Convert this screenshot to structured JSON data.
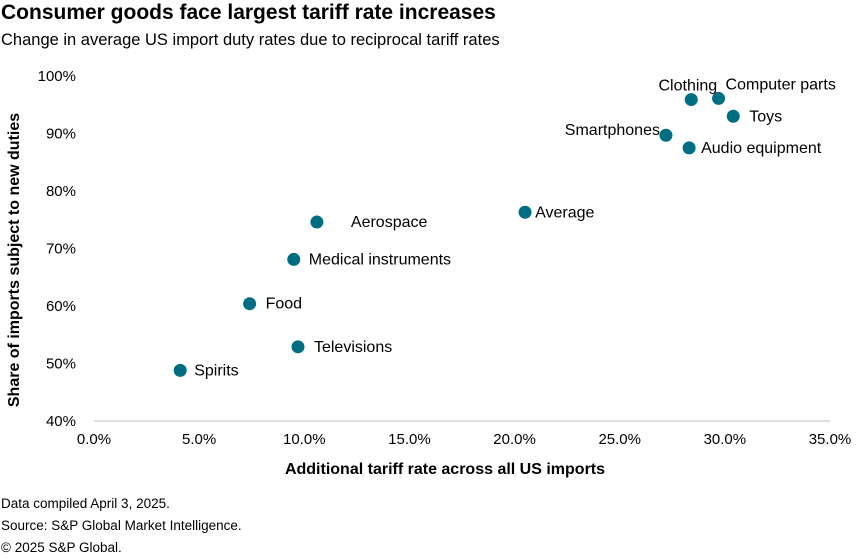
{
  "header": {
    "title": "Consumer goods face largest tariff rate increases",
    "subtitle": "Change in average US import duty rates due to reciprocal tariff rates"
  },
  "footer": {
    "note": "Data compiled April 3, 2025.",
    "source": "Source: S&P Global Market Intelligence.",
    "copyright": "© 2025 S&P Global."
  },
  "colors": {
    "marker": "#006e82",
    "axis": "#bfbfbf"
  },
  "chart_data": {
    "type": "scatter",
    "title": "Consumer goods face largest tariff rate increases",
    "subtitle": "Change in average US import duty rates due to reciprocal tariff rates",
    "xlabel": "Additional tariff rate across all US imports",
    "ylabel": "Share of imports subject to new duties",
    "xlim": [
      0,
      35
    ],
    "ylim": [
      40,
      100
    ],
    "x_ticks": [
      "0.0%",
      "5.0%",
      "10.0%",
      "15.0%",
      "20.0%",
      "25.0%",
      "30.0%",
      "35.0%"
    ],
    "y_ticks": [
      "40%",
      "50%",
      "60%",
      "70%",
      "80%",
      "90%",
      "100%"
    ],
    "grid": false,
    "legend": "none",
    "points": [
      {
        "label": "Spirits",
        "x": 4.1,
        "y": 48.8
      },
      {
        "label": "Food",
        "x": 7.4,
        "y": 60.4
      },
      {
        "label": "Televisions",
        "x": 9.7,
        "y": 52.9
      },
      {
        "label": "Medical instruments",
        "x": 9.5,
        "y": 68.1
      },
      {
        "label": "Aerospace",
        "x": 10.6,
        "y": 74.6
      },
      {
        "label": "Average",
        "x": 20.5,
        "y": 76.3
      },
      {
        "label": "Smartphones",
        "x": 27.2,
        "y": 89.7
      },
      {
        "label": "Audio equipment",
        "x": 28.3,
        "y": 87.5
      },
      {
        "label": "Clothing",
        "x": 28.4,
        "y": 95.9
      },
      {
        "label": "Computer parts",
        "x": 29.7,
        "y": 96.1
      },
      {
        "label": "Toys",
        "x": 30.4,
        "y": 93.0
      }
    ]
  }
}
